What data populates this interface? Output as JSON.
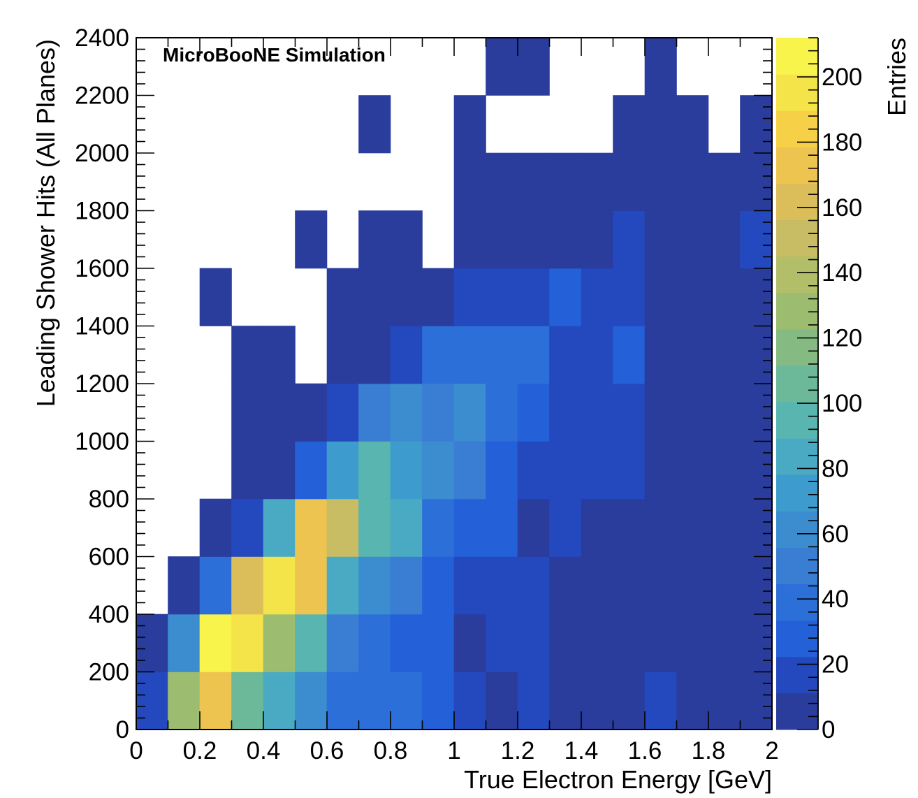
{
  "chart_data": {
    "type": "heatmap",
    "annotation": "MicroBooNE Simulation",
    "xlabel": "True Electron Energy [GeV]",
    "ylabel": "Leading Shower Hits (All Planes)",
    "zlabel": "Entries",
    "xlim": [
      0,
      2
    ],
    "ylim": [
      0,
      2400
    ],
    "zlim": [
      0,
      212
    ],
    "x_bin_width": 0.1,
    "y_bin_width": 200,
    "x_ticks": [
      "0",
      "0.2",
      "0.4",
      "0.6",
      "0.8",
      "1",
      "1.2",
      "1.4",
      "1.6",
      "1.8",
      "2"
    ],
    "y_ticks": [
      "0",
      "200",
      "400",
      "600",
      "800",
      "1000",
      "1200",
      "1400",
      "1600",
      "1800",
      "2000",
      "2200",
      "2400"
    ],
    "z_ticks": [
      "0",
      "20",
      "40",
      "60",
      "80",
      "100",
      "120",
      "140",
      "160",
      "180",
      "200"
    ],
    "palette": [
      "#2a3c9c",
      "#2449bf",
      "#2460d8",
      "#2d6fd8",
      "#3a7ed3",
      "#3b8dd0",
      "#3d9ccd",
      "#4aaac3",
      "#58b5b0",
      "#6cb999",
      "#85bb82",
      "#9cbd70",
      "#b3be68",
      "#c8bc64",
      "#dbbd5a",
      "#eec450",
      "#f6d148",
      "#f5e34a",
      "#f8f44c"
    ],
    "y_edges": [
      0,
      200,
      400,
      600,
      800,
      1000,
      1200,
      1400,
      1600,
      1800,
      2000,
      2200,
      2400
    ],
    "z_values_by_y_bin": [
      [
        22,
        125,
        168,
        105,
        85,
        65,
        40,
        40,
        40,
        28,
        18,
        8,
        18,
        8,
        8,
        8,
        18,
        8,
        8,
        8
      ],
      [
        8,
        60,
        212,
        200,
        128,
        100,
        55,
        40,
        28,
        28,
        8,
        18,
        18,
        8,
        8,
        8,
        8,
        8,
        8,
        8
      ],
      [
        0,
        8,
        40,
        160,
        200,
        168,
        80,
        60,
        50,
        28,
        18,
        18,
        18,
        8,
        8,
        8,
        8,
        8,
        8,
        8
      ],
      [
        0,
        0,
        8,
        18,
        80,
        168,
        150,
        90,
        80,
        40,
        28,
        28,
        8,
        18,
        8,
        8,
        8,
        8,
        8,
        8
      ],
      [
        0,
        0,
        0,
        8,
        8,
        30,
        70,
        100,
        70,
        60,
        50,
        28,
        18,
        18,
        18,
        18,
        8,
        8,
        8,
        8
      ],
      [
        0,
        0,
        0,
        8,
        8,
        8,
        18,
        50,
        60,
        55,
        60,
        40,
        28,
        18,
        18,
        18,
        8,
        8,
        8,
        8
      ],
      [
        0,
        0,
        0,
        8,
        8,
        0,
        8,
        8,
        18,
        40,
        40,
        40,
        40,
        18,
        18,
        28,
        8,
        8,
        8,
        8
      ],
      [
        0,
        0,
        8,
        0,
        0,
        0,
        8,
        8,
        8,
        8,
        18,
        18,
        18,
        28,
        18,
        18,
        8,
        8,
        8,
        8
      ],
      [
        0,
        0,
        0,
        0,
        0,
        8,
        0,
        8,
        8,
        0,
        8,
        8,
        8,
        8,
        8,
        18,
        8,
        8,
        8,
        18
      ],
      [
        0,
        0,
        0,
        0,
        0,
        0,
        0,
        0,
        0,
        0,
        8,
        8,
        8,
        8,
        8,
        8,
        8,
        8,
        8,
        8
      ],
      [
        0,
        0,
        0,
        0,
        0,
        0,
        0,
        8,
        0,
        0,
        8,
        0,
        0,
        0,
        0,
        8,
        8,
        8,
        0,
        8
      ],
      [
        0,
        0,
        0,
        0,
        0,
        0,
        0,
        0,
        0,
        0,
        0,
        8,
        8,
        0,
        0,
        0,
        8,
        0,
        0,
        0
      ]
    ]
  }
}
